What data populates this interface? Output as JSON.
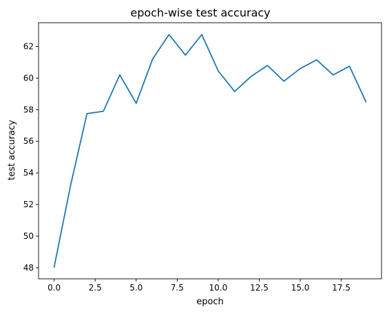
{
  "chart_data": {
    "type": "line",
    "title": "epoch-wise test accuracy",
    "xlabel": "epoch",
    "ylabel": "test accuracy",
    "xlim": [
      -0.95,
      19.95
    ],
    "ylim": [
      47.3,
      63.5
    ],
    "xticks": [
      0.0,
      2.5,
      5.0,
      7.5,
      10.0,
      12.5,
      15.0,
      17.5
    ],
    "xtick_labels": [
      "0.0",
      "2.5",
      "5.0",
      "7.5",
      "10.0",
      "12.5",
      "15.0",
      "17.5"
    ],
    "yticks": [
      48,
      50,
      52,
      54,
      56,
      58,
      60,
      62
    ],
    "ytick_labels": [
      "48",
      "50",
      "52",
      "54",
      "56",
      "58",
      "60",
      "62"
    ],
    "grid": false,
    "series": [
      {
        "color": "#1f77b4",
        "x": [
          0,
          1,
          2,
          3,
          4,
          5,
          6,
          7,
          8,
          9,
          10,
          11,
          12,
          13,
          14,
          15,
          16,
          17,
          18,
          19
        ],
        "y": [
          48.05,
          53.2,
          57.75,
          57.9,
          60.2,
          58.4,
          61.2,
          62.75,
          61.45,
          62.75,
          60.45,
          59.15,
          60.1,
          60.8,
          59.8,
          60.6,
          61.15,
          60.2,
          60.75,
          58.5
        ]
      }
    ]
  }
}
